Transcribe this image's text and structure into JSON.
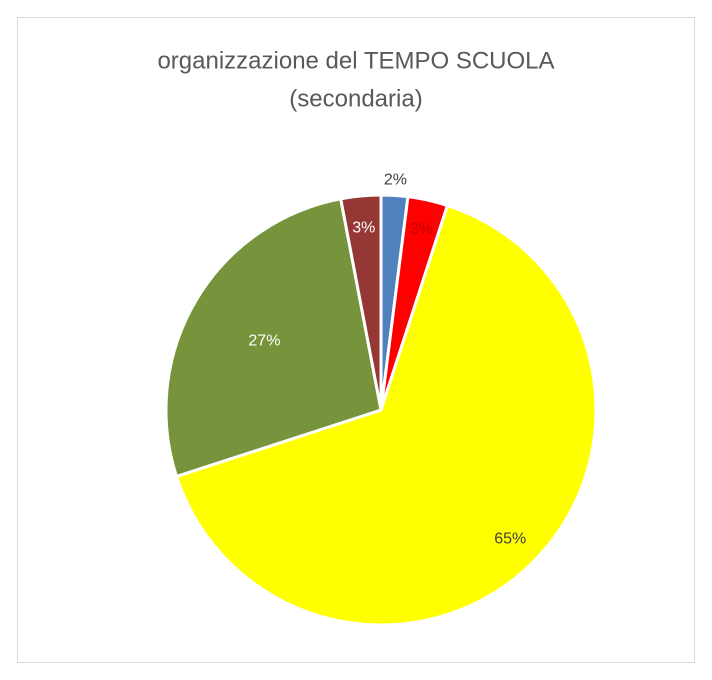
{
  "chart_data": {
    "type": "pie",
    "title": [
      "organizzazione del TEMPO SCUOLA",
      "(secondaria)"
    ],
    "values": [
      2,
      3,
      65,
      27,
      3
    ],
    "value_labels": [
      "2%",
      "3%",
      "65%",
      "27%",
      "3%"
    ],
    "colors": [
      "#4f81bd",
      "#ff0000",
      "#ffff00",
      "#77933c",
      "#953735"
    ],
    "label_colors": [
      "#404040",
      "#c00000",
      "#404040",
      "#ffffff",
      "#ffffff"
    ]
  }
}
